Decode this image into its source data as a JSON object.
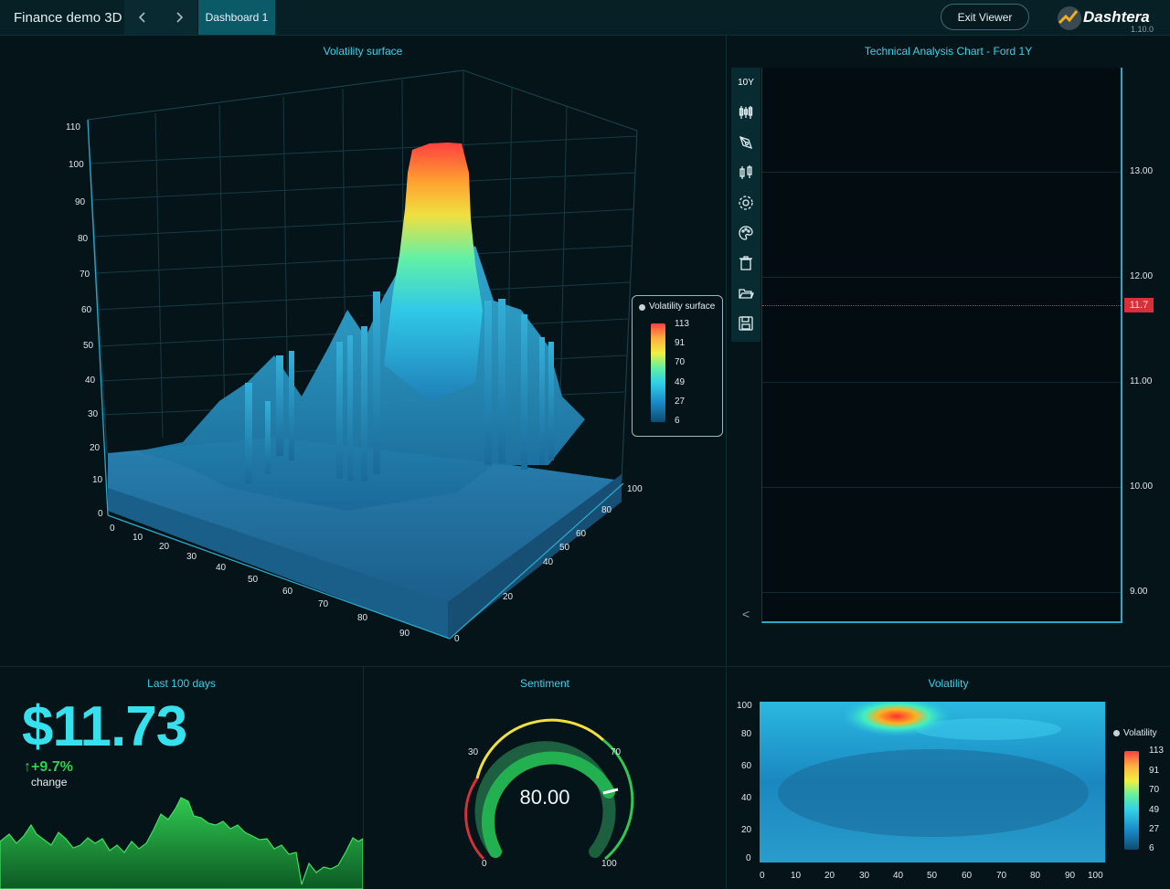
{
  "app": {
    "title": "Finance demo 3D",
    "active_tab": "Dashboard 1",
    "exit_button": "Exit Viewer",
    "logo_text": "Dashtera",
    "logo_version": "1.10.0"
  },
  "panels": {
    "surface": {
      "title": "Volatility surface",
      "y_ticks": [
        "0",
        "10",
        "20",
        "30",
        "40",
        "50",
        "60",
        "70",
        "80",
        "90",
        "100",
        "110"
      ],
      "x_ticks": [
        "0",
        "10",
        "20",
        "30",
        "40",
        "50",
        "60",
        "70",
        "80",
        "90"
      ],
      "z_ticks": [
        "0",
        "20",
        "40",
        "50",
        "60",
        "80",
        "100"
      ],
      "legend": {
        "title": "Volatility surface",
        "values": [
          "113",
          "91",
          "70",
          "49",
          "27",
          "6"
        ]
      }
    },
    "technical": {
      "title": "Technical Analysis Chart - Ford 1Y",
      "period_button": "10Y",
      "y_ticks": [
        "13.00",
        "12.00",
        "11.00",
        "10.00",
        "9.00"
      ],
      "price_tag": "11.7",
      "collapse_glyph": "<",
      "tools": [
        "candlestick-series-icon",
        "pen-draw-icon",
        "candlestick-indicator-icon",
        "settings-gear-icon",
        "palette-icon",
        "recycle-bin-icon",
        "open-folder-icon",
        "save-disk-icon"
      ]
    },
    "last100": {
      "title": "Last 100 days",
      "price": "$11.73",
      "change": "↑+9.7%",
      "change_label": "change"
    },
    "sentiment": {
      "title": "Sentiment",
      "value": "80.00",
      "labels": {
        "min": "0",
        "low": "30",
        "high": "70",
        "max": "100"
      }
    },
    "volatility": {
      "title": "Volatility",
      "x_ticks": [
        "0",
        "10",
        "20",
        "30",
        "40",
        "50",
        "60",
        "70",
        "80",
        "90",
        "100"
      ],
      "y_ticks": [
        "0",
        "20",
        "40",
        "60",
        "80",
        "100"
      ],
      "legend": {
        "title": "Volatility",
        "values": [
          "113",
          "91",
          "70",
          "49",
          "27",
          "6"
        ]
      }
    }
  },
  "colors": {
    "accent": "#3fd0e6",
    "price": "#36e0ec",
    "positive": "#30d050",
    "alert": "#d8303a"
  }
}
